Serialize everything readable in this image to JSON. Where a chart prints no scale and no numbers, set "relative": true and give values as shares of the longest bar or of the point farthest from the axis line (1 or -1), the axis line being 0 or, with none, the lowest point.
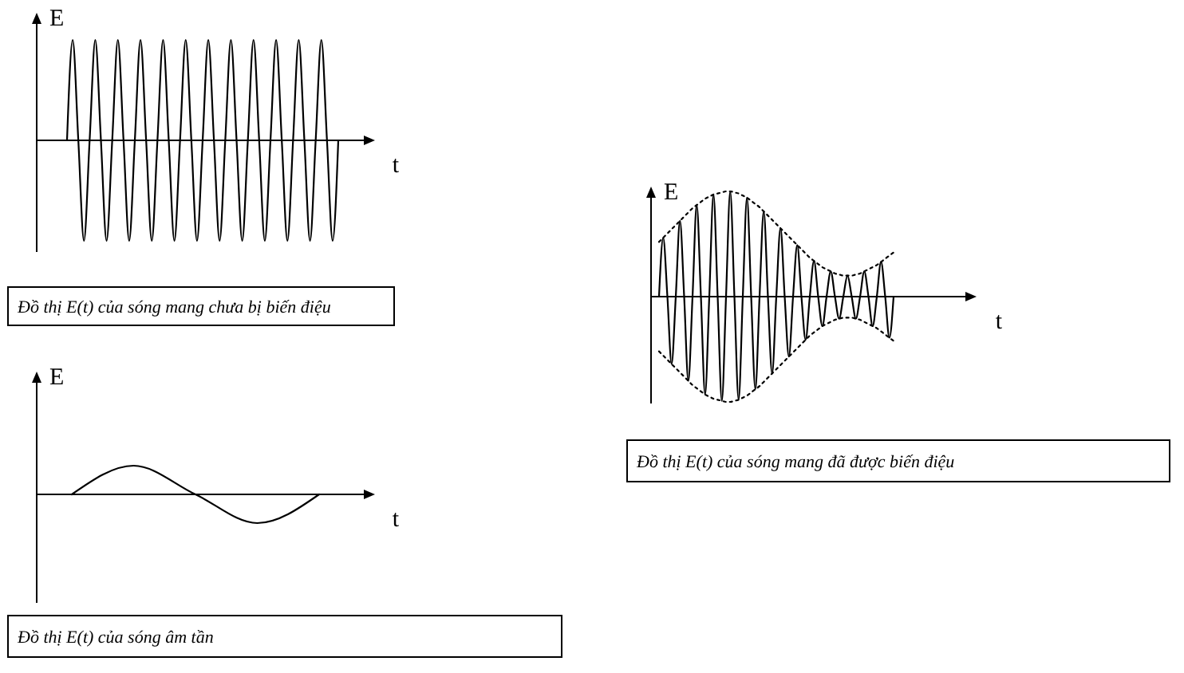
{
  "chart_data": [
    {
      "type": "line",
      "title": "Đồ thị E(t) của sóng mang chưa bị biến điệu",
      "xlabel": "t",
      "ylabel": "E",
      "relative": true,
      "categories": [
        null,
        null,
        null,
        null,
        null,
        null,
        null,
        null,
        null,
        null,
        null,
        null,
        null,
        null,
        null,
        null,
        null,
        null,
        null,
        null,
        null,
        null,
        null,
        null,
        null,
        null,
        null,
        null,
        null,
        null,
        null,
        null,
        null,
        null,
        null,
        null,
        null,
        null,
        null,
        null,
        null,
        null,
        null,
        null,
        null,
        null,
        null,
        null,
        null
      ],
      "series": [
        {
          "color": "#000000",
          "line_style": "solid",
          "values": [
            0,
            1,
            0,
            -1,
            0,
            1,
            0,
            -1,
            0,
            1,
            0,
            -1,
            0,
            1,
            0,
            -1,
            0,
            1,
            0,
            -1,
            0,
            1,
            0,
            -1,
            0,
            1,
            0,
            -1,
            0,
            1,
            0,
            -1,
            0,
            1,
            0,
            -1,
            0,
            1,
            0,
            -1,
            0,
            1,
            0,
            -1,
            0,
            1,
            0,
            -1,
            0
          ]
        }
      ]
    },
    {
      "type": "line",
      "title": "Đồ thị E(t) của sóng âm tần",
      "xlabel": "t",
      "ylabel": "E",
      "relative": true,
      "categories": [
        null,
        null,
        null,
        null,
        null
      ],
      "series": [
        {
          "color": "#000000",
          "line_style": "solid",
          "values": [
            0,
            1,
            0,
            -1,
            0
          ]
        }
      ]
    },
    {
      "type": "line",
      "title": "Đồ thị E(t) của sóng mang đã được biến điệu",
      "xlabel": "t",
      "ylabel": "E",
      "relative": true,
      "categories": [
        null,
        null,
        null,
        null,
        null,
        null,
        null,
        null,
        null,
        null,
        null,
        null,
        null,
        null,
        null,
        null,
        null,
        null,
        null,
        null,
        null,
        null,
        null,
        null,
        null,
        null,
        null,
        null,
        null,
        null,
        null,
        null,
        null,
        null,
        null,
        null,
        null,
        null,
        null,
        null,
        null,
        null,
        null,
        null,
        null,
        null,
        null,
        null,
        null,
        null,
        null,
        null,
        null,
        null,
        null,
        null,
        null
      ],
      "series": [
        {
          "color": "#000000",
          "line_style": "solid",
          "values": [
            0,
            0.56,
            0,
            -0.64,
            0,
            0.72,
            0,
            -0.8,
            0,
            0.87,
            0,
            -0.93,
            0,
            0.97,
            0,
            -0.99,
            0,
            1,
            0,
            -0.98,
            0,
            0.94,
            0,
            -0.88,
            0,
            0.81,
            0,
            -0.73,
            0,
            0.65,
            0,
            -0.57,
            0,
            0.49,
            0,
            -0.41,
            0,
            0.34,
            0,
            -0.28,
            0,
            0.24,
            0,
            -0.21,
            0,
            0.2,
            0,
            -0.21,
            0,
            0.24,
            0,
            -0.28,
            0,
            0.33,
            0,
            -0.39,
            0
          ]
        },
        {
          "color": "#000000",
          "line_style": "dotted",
          "values": [
            0.52,
            0.56,
            0.6,
            0.64,
            0.68,
            0.72,
            0.76,
            0.8,
            0.84,
            0.87,
            0.9,
            0.93,
            0.95,
            0.97,
            0.98,
            0.99,
            1,
            1,
            0.99,
            0.98,
            0.96,
            0.94,
            0.91,
            0.88,
            0.85,
            0.81,
            0.77,
            0.73,
            0.69,
            0.65,
            0.61,
            0.57,
            0.53,
            0.49,
            0.45,
            0.41,
            0.37,
            0.34,
            0.31,
            0.28,
            0.26,
            0.24,
            0.22,
            0.21,
            0.2,
            0.2,
            0.2,
            0.21,
            0.22,
            0.24,
            0.26,
            0.28,
            0.3,
            0.33,
            0.36,
            0.39,
            0.42
          ]
        },
        {
          "color": "#000000",
          "line_style": "dotted",
          "values": [
            -0.52,
            -0.56,
            -0.6,
            -0.64,
            -0.68,
            -0.72,
            -0.76,
            -0.8,
            -0.84,
            -0.87,
            -0.9,
            -0.93,
            -0.95,
            -0.97,
            -0.98,
            -0.99,
            -1,
            -1,
            -0.99,
            -0.98,
            -0.96,
            -0.94,
            -0.91,
            -0.88,
            -0.85,
            -0.81,
            -0.77,
            -0.73,
            -0.69,
            -0.65,
            -0.61,
            -0.57,
            -0.53,
            -0.49,
            -0.45,
            -0.41,
            -0.37,
            -0.34,
            -0.31,
            -0.28,
            -0.26,
            -0.24,
            -0.22,
            -0.21,
            -0.2,
            -0.2,
            -0.2,
            -0.21,
            -0.22,
            -0.24,
            -0.26,
            -0.28,
            -0.3,
            -0.33,
            -0.36,
            -0.39,
            -0.42
          ]
        }
      ]
    }
  ]
}
